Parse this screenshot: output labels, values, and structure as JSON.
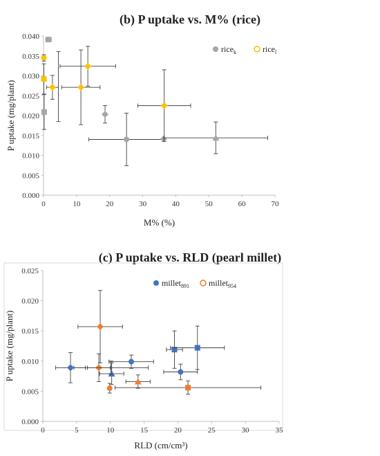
{
  "chart_data": [
    {
      "type": "scatter",
      "title": "(b) P uptake vs. M% (rice)",
      "xlabel": "M% (%)",
      "ylabel": "P uptake (mg/plant)",
      "xlim": [
        0,
        70
      ],
      "ylim": [
        0,
        0.04
      ],
      "x_ticks": [
        "0",
        "10",
        "20",
        "30",
        "40",
        "50",
        "60",
        "70"
      ],
      "y_ticks": [
        "0.000",
        "0.005",
        "0.010",
        "0.015",
        "0.020",
        "0.025",
        "0.030",
        "0.035",
        "0.040"
      ],
      "legend_position": "top-right",
      "series": [
        {
          "name_main": "rice",
          "name_sub": "k",
          "color": "#a6a6a6",
          "points": [
            {
              "x": 0.2,
              "y": 0.0209,
              "marker": "square",
              "xerr": 0,
              "yerr": 0.0044
            },
            {
              "x": 1.5,
              "y": 0.0391,
              "marker": "square",
              "xerr": 0.8,
              "yerr": 0.0004
            },
            {
              "x": 18.6,
              "y": 0.0203,
              "marker": "diamond",
              "xerr": 0,
              "yerr": 0.0022
            },
            {
              "x": 25.1,
              "y": 0.014,
              "marker": "circle",
              "xerr": 11.4,
              "yerr": 0.0066
            },
            {
              "x": 36.3,
              "y": 0.0141,
              "marker": "diamond",
              "xerr": 0,
              "yerr": 0
            },
            {
              "x": 52.1,
              "y": 0.0144,
              "marker": "triangle",
              "xerr": 15.7,
              "yerr": 0.004
            }
          ]
        },
        {
          "name_main": "rice",
          "name_sub": "l",
          "color": "#ffc000",
          "points": [
            {
              "x": 0.1,
              "y": 0.0345,
              "marker": "circle",
              "xerr": 0,
              "yerr": 0.0008
            },
            {
              "x": 0.1,
              "y": 0.0292,
              "marker": "square",
              "xerr": 0,
              "yerr": 0.0038
            },
            {
              "x": 2.7,
              "y": 0.0271,
              "marker": "diamond",
              "xerr": 1.8,
              "yerr": 0.003
            },
            {
              "x": 4.5,
              "y": 0.0273,
              "marker": "none",
              "xerr": 0,
              "yerr": 0.0088
            },
            {
              "x": 11.3,
              "y": 0.0271,
              "marker": "diamond",
              "xerr": 5.8,
              "yerr": 0.0094
            },
            {
              "x": 13.4,
              "y": 0.0324,
              "marker": "diamond",
              "xerr": 8.4,
              "yerr": 0.005
            },
            {
              "x": 36.5,
              "y": 0.0225,
              "marker": "diamond",
              "xerr": 8.0,
              "yerr": 0.009
            }
          ]
        }
      ]
    },
    {
      "type": "scatter",
      "title": "(c) P uptake vs. RLD (pearl millet)",
      "xlabel": "RLD (cm/cm³)",
      "ylabel": "P uptake (mg/plant)",
      "xlim": [
        0,
        35
      ],
      "ylim": [
        0,
        0.025
      ],
      "x_ticks": [
        "0",
        "5",
        "10",
        "15",
        "20",
        "25",
        "30",
        "35"
      ],
      "y_ticks": [
        "0.000",
        "0.005",
        "0.010",
        "0.015",
        "0.020",
        "0.025"
      ],
      "legend_position": "top-right",
      "series": [
        {
          "name_main": "millet",
          "name_sub": "891",
          "color": "#4472c4",
          "points": [
            {
              "x": 4.1,
              "y": 0.0089,
              "marker": "diamond",
              "xerr": 2.2,
              "yerr": 0.0025
            },
            {
              "x": 10.2,
              "y": 0.0079,
              "marker": "triangle",
              "xerr": 1.8,
              "yerr": 0.0018
            },
            {
              "x": 13.1,
              "y": 0.0099,
              "marker": "circle",
              "xerr": 3.3,
              "yerr": 0.0011
            },
            {
              "x": 19.5,
              "y": 0.0119,
              "marker": "square",
              "xerr": 1.2,
              "yerr": 0.0031
            },
            {
              "x": 20.4,
              "y": 0.0082,
              "marker": "circle",
              "xerr": 2.5,
              "yerr": 0.0013
            },
            {
              "x": 22.9,
              "y": 0.0122,
              "marker": "square",
              "xerr": 4.0,
              "yerr": 0.0036
            }
          ]
        },
        {
          "name_main": "millet",
          "name_sub": "954",
          "color": "#ed7d31",
          "points": [
            {
              "x": 8.3,
              "y": 0.0089,
              "marker": "diamond",
              "xerr": 1.7,
              "yerr": 0.0023
            },
            {
              "x": 8.5,
              "y": 0.0157,
              "marker": "diamond",
              "xerr": 3.3,
              "yerr": 0.006
            },
            {
              "x": 9.9,
              "y": 0.0055,
              "marker": "circle",
              "xerr": 0,
              "yerr": 0.0008
            },
            {
              "x": 10.1,
              "y": 0.0089,
              "marker": "none",
              "xerr": 5.5,
              "yerr": 0.0011
            },
            {
              "x": 14.1,
              "y": 0.0066,
              "marker": "triangle",
              "xerr": 1.8,
              "yerr": 0.0011
            },
            {
              "x": 21.5,
              "y": 0.0056,
              "marker": "square",
              "xerr": 10.8,
              "yerr": 0.0011
            }
          ]
        }
      ]
    }
  ]
}
